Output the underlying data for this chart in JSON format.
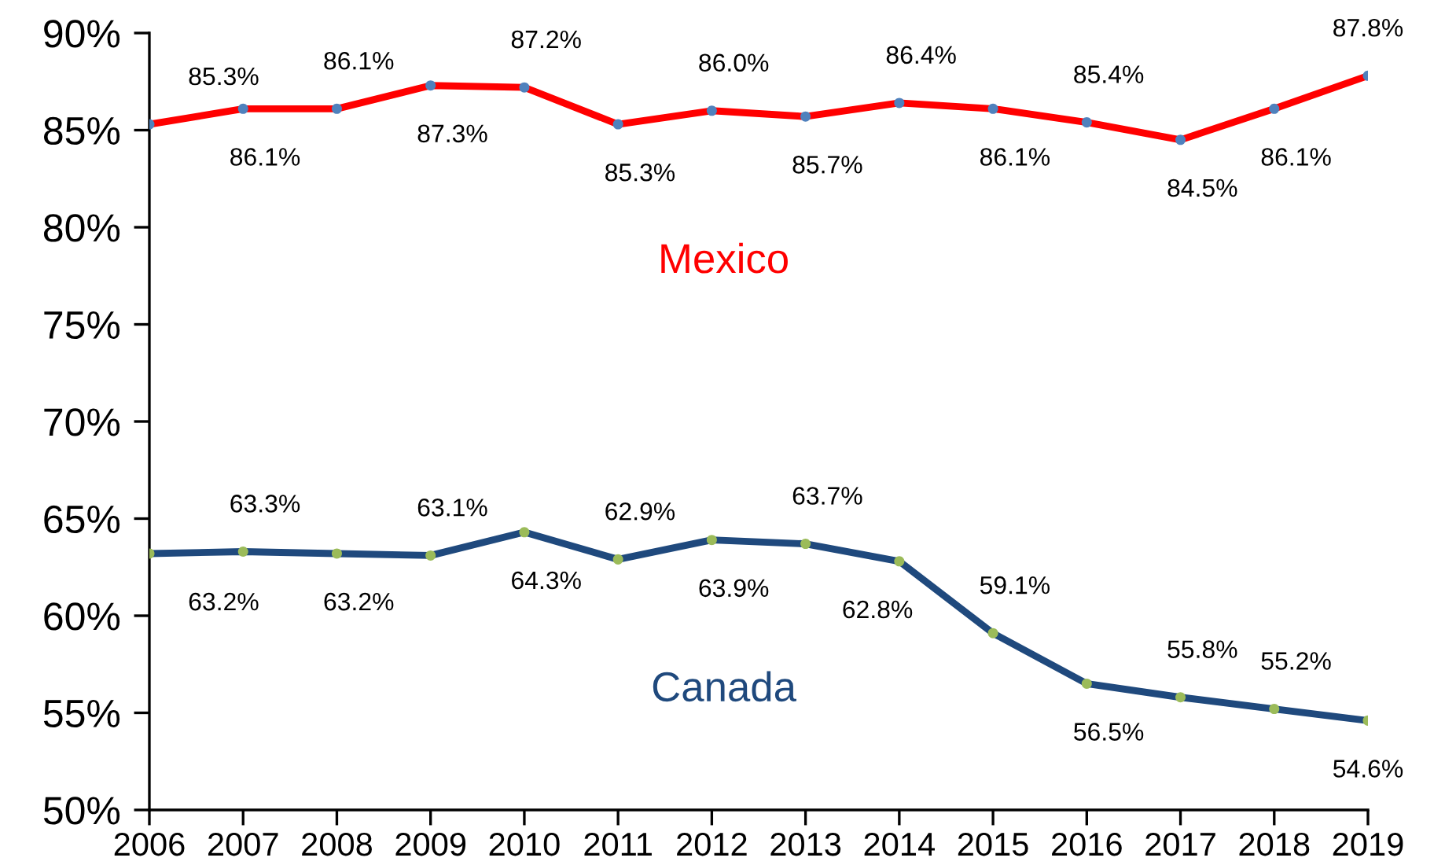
{
  "chart_data": {
    "type": "line",
    "categories": [
      "2006",
      "2007",
      "2008",
      "2009",
      "2010",
      "2011",
      "2012",
      "2013",
      "2014",
      "2015",
      "2016",
      "2017",
      "2018",
      "2019"
    ],
    "ylim": [
      50,
      90
    ],
    "yticks": [
      {
        "value": 50,
        "label": "50%"
      },
      {
        "value": 55,
        "label": "55%"
      },
      {
        "value": 60,
        "label": "60%"
      },
      {
        "value": 65,
        "label": "65%"
      },
      {
        "value": 70,
        "label": "70%"
      },
      {
        "value": 75,
        "label": "75%"
      },
      {
        "value": 80,
        "label": "80%"
      },
      {
        "value": 85,
        "label": "85%"
      },
      {
        "value": 90,
        "label": "90%"
      }
    ],
    "marker": "circle",
    "line_style": "solid",
    "series": [
      {
        "name": "Mexico",
        "color": "#ff0000",
        "colors": [
          "#4f81bd",
          "#4f81bd",
          "#4f81bd",
          "#4f81bd",
          "#4f81bd",
          "#4f81bd",
          "#4f81bd",
          "#4f81bd",
          "#4f81bd",
          "#4f81bd",
          "#4f81bd",
          "#4f81bd",
          "#4f81bd",
          "#4f81bd"
        ],
        "values": [
          85.3,
          86.1,
          86.1,
          87.3,
          87.2,
          85.3,
          86.0,
          85.7,
          86.4,
          86.1,
          85.4,
          84.5,
          86.1,
          87.8
        ],
        "value_labels": [
          "85.3%",
          "86.1%",
          "86.1%",
          "87.3%",
          "87.2%",
          "85.3%",
          "86.0%",
          "85.7%",
          "86.4%",
          "86.1%",
          "85.4%",
          "84.5%",
          "86.1%",
          "87.8%"
        ]
      },
      {
        "name": "Canada",
        "color": "#1f497d",
        "colors": [
          "#9bbb59",
          "#9bbb59",
          "#9bbb59",
          "#9bbb59",
          "#9bbb59",
          "#9bbb59",
          "#9bbb59",
          "#9bbb59",
          "#9bbb59",
          "#9bbb59",
          "#9bbb59",
          "#9bbb59",
          "#9bbb59",
          "#9bbb59"
        ],
        "values": [
          63.2,
          63.3,
          63.2,
          63.1,
          64.3,
          62.9,
          63.9,
          63.7,
          62.8,
          59.1,
          56.5,
          55.8,
          55.2,
          54.6
        ],
        "value_labels": [
          "63.2%",
          "63.3%",
          "63.2%",
          "63.1%",
          "64.3%",
          "62.9%",
          "63.9%",
          "63.7%",
          "62.8%",
          "59.1%",
          "56.5%",
          "55.8%",
          "55.2%",
          "54.6%"
        ]
      }
    ]
  }
}
